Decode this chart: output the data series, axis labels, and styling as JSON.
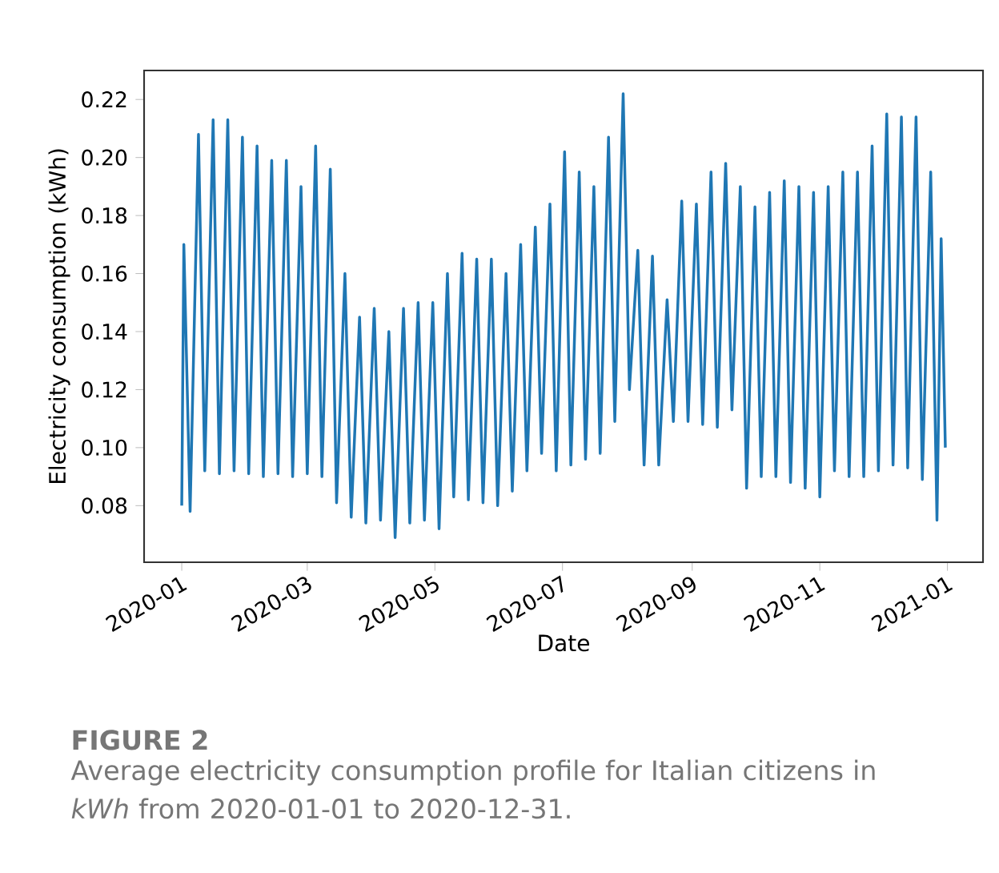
{
  "chart_data": {
    "type": "line",
    "xlabel": "Date",
    "ylabel": "Electricity consumption (kWh)",
    "color": "#1f77b4",
    "xlim": [
      "2019-12-14",
      "2021-01-18"
    ],
    "ylim": [
      0.0605,
      0.23
    ],
    "xticks": [
      "2020-01",
      "2020-03",
      "2020-05",
      "2020-07",
      "2020-09",
      "2020-11",
      "2021-01"
    ],
    "yticks": [
      0.08,
      {
        "value": 0.1,
        "label": "0.10"
      },
      0.12,
      0.14,
      0.16,
      0.18,
      {
        "value": 0.2,
        "label": "0.20"
      },
      0.22
    ],
    "x": [
      "2020-01-01",
      "2020-01-02",
      "2020-01-05",
      "2020-01-09",
      "2020-01-12",
      "2020-01-16",
      "2020-01-19",
      "2020-01-23",
      "2020-01-26",
      "2020-01-30",
      "2020-02-02",
      "2020-02-06",
      "2020-02-09",
      "2020-02-13",
      "2020-02-16",
      "2020-02-20",
      "2020-02-23",
      "2020-02-27",
      "2020-03-01",
      "2020-03-05",
      "2020-03-08",
      "2020-03-12",
      "2020-03-15",
      "2020-03-19",
      "2020-03-22",
      "2020-03-26",
      "2020-03-29",
      "2020-04-02",
      "2020-04-05",
      "2020-04-09",
      "2020-04-12",
      "2020-04-16",
      "2020-04-19",
      "2020-04-23",
      "2020-04-26",
      "2020-04-30",
      "2020-05-03",
      "2020-05-07",
      "2020-05-10",
      "2020-05-14",
      "2020-05-17",
      "2020-05-21",
      "2020-05-24",
      "2020-05-28",
      "2020-05-31",
      "2020-06-04",
      "2020-06-07",
      "2020-06-11",
      "2020-06-14",
      "2020-06-18",
      "2020-06-21",
      "2020-06-25",
      "2020-06-28",
      "2020-07-02",
      "2020-07-05",
      "2020-07-09",
      "2020-07-12",
      "2020-07-16",
      "2020-07-19",
      "2020-07-23",
      "2020-07-26",
      "2020-07-30",
      "2020-08-02",
      "2020-08-06",
      "2020-08-09",
      "2020-08-13",
      "2020-08-16",
      "2020-08-20",
      "2020-08-23",
      "2020-08-27",
      "2020-08-30",
      "2020-09-03",
      "2020-09-06",
      "2020-09-10",
      "2020-09-13",
      "2020-09-17",
      "2020-09-20",
      "2020-09-24",
      "2020-09-27",
      "2020-10-01",
      "2020-10-04",
      "2020-10-08",
      "2020-10-11",
      "2020-10-15",
      "2020-10-18",
      "2020-10-22",
      "2020-10-25",
      "2020-10-29",
      "2020-11-01",
      "2020-11-05",
      "2020-11-08",
      "2020-11-12",
      "2020-11-15",
      "2020-11-19",
      "2020-11-22",
      "2020-11-26",
      "2020-11-29",
      "2020-12-03",
      "2020-12-06",
      "2020-12-10",
      "2020-12-13",
      "2020-12-17",
      "2020-12-20",
      "2020-12-24",
      "2020-12-27",
      "2020-12-29",
      "2020-12-31"
    ],
    "values": [
      0.08,
      0.17,
      0.078,
      0.208,
      0.092,
      0.213,
      0.091,
      0.213,
      0.092,
      0.207,
      0.091,
      0.204,
      0.09,
      0.199,
      0.091,
      0.199,
      0.09,
      0.19,
      0.091,
      0.204,
      0.09,
      0.196,
      0.081,
      0.16,
      0.076,
      0.145,
      0.074,
      0.148,
      0.075,
      0.14,
      0.069,
      0.148,
      0.074,
      0.15,
      0.075,
      0.15,
      0.072,
      0.16,
      0.083,
      0.167,
      0.082,
      0.165,
      0.081,
      0.165,
      0.08,
      0.16,
      0.085,
      0.17,
      0.092,
      0.176,
      0.098,
      0.184,
      0.092,
      0.202,
      0.094,
      0.195,
      0.096,
      0.19,
      0.098,
      0.207,
      0.109,
      0.222,
      0.12,
      0.168,
      0.094,
      0.166,
      0.094,
      0.151,
      0.109,
      0.185,
      0.109,
      0.184,
      0.108,
      0.195,
      0.107,
      0.198,
      0.113,
      0.19,
      0.086,
      0.183,
      0.09,
      0.188,
      0.09,
      0.192,
      0.088,
      0.19,
      0.086,
      0.188,
      0.083,
      0.19,
      0.092,
      0.195,
      0.09,
      0.195,
      0.09,
      0.204,
      0.092,
      0.215,
      0.094,
      0.214,
      0.093,
      0.214,
      0.089,
      0.195,
      0.075,
      0.172,
      0.1
    ],
    "annotations": [
      "FIGURE 2",
      "Average electricity consumption profile for Italian citizens in *kWh* from 2020-01-01 to 2020-12-31."
    ]
  }
}
